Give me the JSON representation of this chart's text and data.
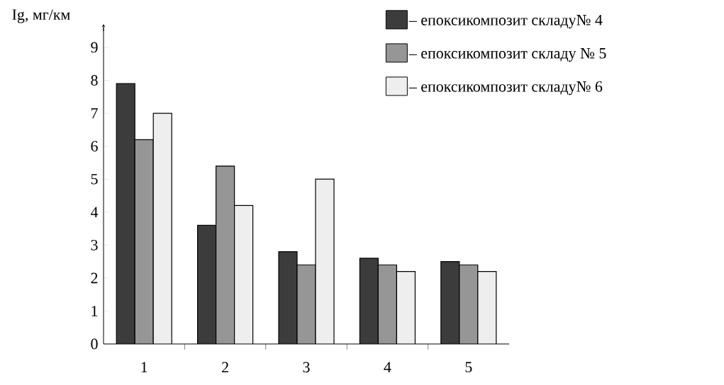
{
  "chart_data": {
    "type": "bar",
    "ylabel": "Ig, мг/км",
    "categories": [
      "1",
      "2",
      "3",
      "4",
      "5"
    ],
    "series": [
      {
        "name": "– епоксикомпозит складу№ 4",
        "color": "#3c3c3c",
        "values": [
          7.9,
          3.6,
          2.8,
          2.6,
          2.5
        ]
      },
      {
        "name": "– епоксикомпозит складу № 5",
        "color": "#969696",
        "values": [
          6.2,
          5.4,
          2.4,
          2.4,
          2.4
        ]
      },
      {
        "name": "– епоксикомпозит складу№ 6",
        "color": "#eeeeee",
        "values": [
          7.0,
          4.2,
          5.0,
          2.2,
          2.2
        ]
      }
    ],
    "ylim": [
      0,
      9.6
    ],
    "yticks": [
      0,
      1,
      2,
      3,
      4,
      5,
      6,
      7,
      8,
      9
    ],
    "grid": false,
    "legend": "top right"
  }
}
